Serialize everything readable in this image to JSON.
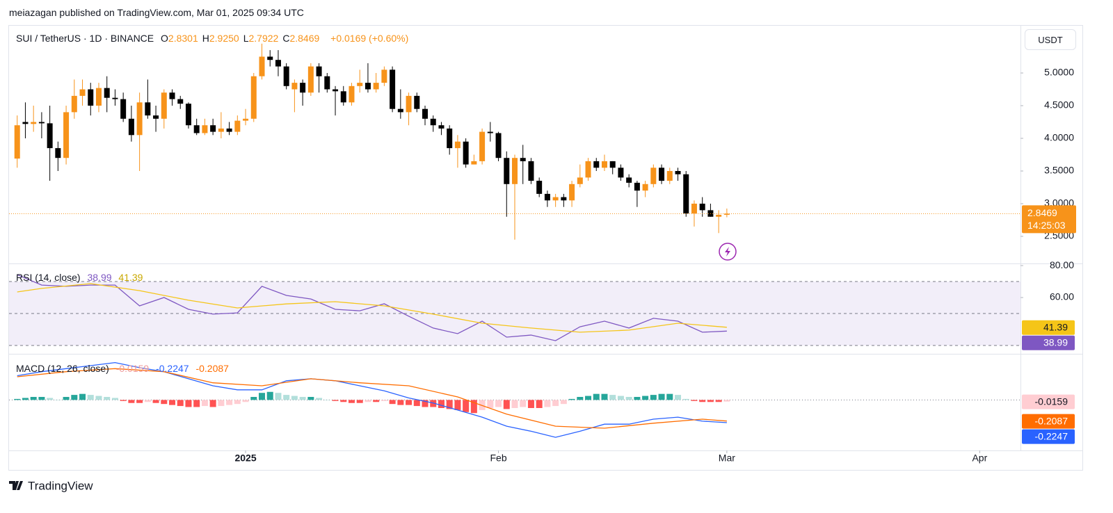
{
  "header": {
    "publisher": "meiazagan published on TradingView.com, Mar 01, 2025 09:34 UTC",
    "currency_button": "USDT"
  },
  "legend": {
    "symbol": "SUI / TetherUS · 1D · BINANCE",
    "ohlc": [
      {
        "key": "O",
        "value": "2.8301"
      },
      {
        "key": "H",
        "value": "2.9250"
      },
      {
        "key": "L",
        "value": "2.7922"
      },
      {
        "key": "C",
        "value": "2.8469"
      }
    ],
    "change": "+0.0169 (+0.60%)",
    "countdown": "14:25:03"
  },
  "footer": {
    "brand": "TradingView"
  },
  "chart_data": [
    {
      "type": "candlestick",
      "up_color": "#f7931a",
      "down_color": "#000000",
      "xlim": [
        -1,
        123
      ],
      "xticks": [
        {
          "value": 28,
          "label": "2025"
        },
        {
          "value": 59,
          "label": "Feb"
        },
        {
          "value": 87,
          "label": "Mar"
        },
        {
          "value": 118,
          "label": "Apr"
        }
      ],
      "ylim": [
        2.0957,
        5.7234
      ],
      "yticks": [
        {
          "value": 2.5,
          "label": "2.5000"
        },
        {
          "value": 3,
          "label": "3.0000"
        },
        {
          "value": 3.5,
          "label": "3.5000"
        },
        {
          "value": 4,
          "label": "4.0000"
        },
        {
          "value": 4.5,
          "label": "4.5000"
        },
        {
          "value": 5,
          "label": "5.0000"
        }
      ],
      "open": [
        3.69,
        4.25,
        4.22,
        4.25,
        4.23,
        3.85,
        3.7,
        4.4,
        4.65,
        4.75,
        4.5,
        4.77,
        4.62,
        4.6,
        4.3,
        4.05,
        4.55,
        4.35,
        4.3,
        4.7,
        4.6,
        4.53,
        4.2,
        4.08,
        4.2,
        4.1,
        4.15,
        4.1,
        4.27,
        4.3,
        4.95,
        5.25,
        5.2,
        5.1,
        4.75,
        4.85,
        4.7,
        5.1,
        4.95,
        4.75,
        4.72,
        4.55,
        4.8,
        4.85,
        4.75,
        4.85,
        5.05,
        4.45,
        4.4,
        4.65,
        4.45,
        4.3,
        4.2,
        4.15,
        3.85,
        3.95,
        3.6,
        3.65,
        4.1,
        4.08,
        3.7,
        3.3,
        3.7,
        3.65,
        3.35,
        3.15,
        3.05,
        3.1,
        3.05,
        3.3,
        3.4,
        3.65,
        3.55,
        3.65,
        3.55,
        3.4,
        3.32,
        3.2,
        3.3,
        3.55,
        3.35,
        3.5,
        3.45,
        2.85,
        3.0,
        2.9,
        2.8,
        2.8301
      ],
      "high": [
        4.35,
        4.55,
        4.5,
        4.4,
        4.5,
        3.95,
        4.5,
        4.9,
        4.9,
        4.85,
        4.85,
        4.95,
        4.75,
        4.7,
        4.5,
        4.7,
        4.9,
        4.5,
        4.75,
        4.75,
        4.65,
        4.55,
        4.3,
        4.3,
        4.3,
        4.4,
        4.25,
        4.35,
        4.45,
        5.0,
        5.45,
        5.35,
        5.35,
        5.15,
        4.9,
        4.9,
        5.15,
        5.15,
        5.0,
        4.8,
        4.8,
        4.85,
        5.05,
        5.15,
        5.0,
        5.1,
        5.1,
        4.75,
        4.7,
        4.7,
        4.5,
        4.35,
        4.25,
        4.2,
        4.05,
        4.0,
        3.75,
        4.15,
        4.25,
        4.1,
        3.8,
        3.75,
        3.9,
        3.7,
        3.4,
        3.2,
        3.15,
        3.15,
        3.35,
        3.6,
        3.7,
        3.7,
        3.75,
        3.65,
        3.6,
        3.45,
        3.35,
        3.35,
        3.6,
        3.6,
        3.55,
        3.55,
        3.5,
        3.05,
        3.1,
        3.0,
        2.9,
        2.925
      ],
      "low": [
        3.55,
        4.0,
        4.1,
        4.0,
        3.35,
        3.5,
        3.6,
        4.3,
        4.5,
        4.35,
        4.4,
        4.4,
        4.5,
        4.25,
        3.95,
        3.5,
        4.3,
        4.1,
        4.15,
        4.5,
        4.45,
        4.15,
        4.05,
        4.05,
        4.05,
        4.0,
        4.05,
        4.05,
        4.2,
        4.25,
        4.9,
        5.1,
        4.95,
        4.75,
        4.4,
        4.5,
        4.65,
        4.7,
        4.7,
        4.35,
        4.5,
        4.5,
        4.7,
        4.7,
        4.7,
        4.8,
        4.4,
        4.3,
        4.2,
        4.4,
        4.2,
        4.1,
        4.05,
        3.75,
        3.55,
        3.55,
        3.6,
        3.6,
        3.95,
        3.65,
        2.8,
        2.45,
        3.3,
        3.3,
        3.1,
        2.95,
        2.95,
        2.95,
        2.95,
        3.25,
        3.35,
        3.5,
        3.5,
        3.45,
        3.35,
        3.25,
        2.95,
        3.1,
        3.25,
        3.3,
        3.3,
        3.35,
        2.8,
        2.65,
        2.8,
        2.8,
        2.55,
        2.7922
      ],
      "close": [
        4.2,
        4.22,
        4.25,
        4.23,
        3.85,
        3.7,
        4.4,
        4.65,
        4.75,
        4.5,
        4.77,
        4.62,
        4.6,
        4.3,
        4.05,
        4.55,
        4.35,
        4.3,
        4.7,
        4.6,
        4.53,
        4.2,
        4.08,
        4.2,
        4.1,
        4.15,
        4.1,
        4.27,
        4.3,
        4.95,
        5.25,
        5.2,
        5.1,
        4.8,
        4.85,
        4.7,
        5.1,
        4.95,
        4.75,
        4.72,
        4.55,
        4.8,
        4.85,
        4.75,
        4.85,
        5.05,
        4.45,
        4.4,
        4.65,
        4.45,
        4.3,
        4.2,
        4.15,
        3.85,
        3.95,
        3.6,
        3.65,
        4.1,
        4.08,
        3.7,
        3.3,
        3.7,
        3.65,
        3.35,
        3.15,
        3.05,
        3.1,
        3.05,
        3.3,
        3.4,
        3.65,
        3.55,
        3.65,
        3.55,
        3.4,
        3.32,
        3.2,
        3.3,
        3.55,
        3.35,
        3.5,
        3.45,
        2.85,
        3.0,
        2.9,
        2.8,
        2.83,
        2.8469
      ]
    },
    {
      "type": "line",
      "title": "RSI (14, close)",
      "xlim": [
        -1,
        123
      ],
      "ylim": [
        25.2,
        80.9
      ],
      "yticks": [
        {
          "value": 80,
          "label": "80.00"
        },
        {
          "value": 60,
          "label": "60.00"
        }
      ],
      "bands": [
        70,
        50,
        30
      ],
      "band_color": "#7e57c2",
      "series": [
        {
          "color": "#7e57c2",
          "x": [
            0,
            3,
            6,
            9,
            12,
            15,
            18,
            21,
            24,
            27,
            30,
            33,
            36,
            39,
            42,
            45,
            48,
            51,
            54,
            57,
            60,
            63,
            66,
            69,
            72,
            75,
            78,
            81,
            84,
            87
          ],
          "values": [
            74.3,
            67.8,
            67,
            67.8,
            67.8,
            54.8,
            60,
            52.6,
            49.6,
            50.4,
            67,
            61.3,
            59.1,
            52.6,
            51.7,
            56.1,
            48.3,
            40.9,
            37.4,
            45.2,
            35.2,
            36.5,
            33,
            41.7,
            45.2,
            40.9,
            47,
            45.2,
            38.3,
            38.99
          ]
        },
        {
          "color": "#f5c518",
          "x": [
            0,
            3,
            9,
            15,
            21,
            27,
            33,
            39,
            45,
            51,
            57,
            63,
            69,
            75,
            81,
            87
          ],
          "values": [
            63.5,
            65.7,
            68.7,
            64.3,
            58.3,
            53.5,
            56,
            57.4,
            54.8,
            49.6,
            43.9,
            40.9,
            38.3,
            39.6,
            43.9,
            41.39
          ]
        }
      ]
    },
    {
      "type": "macd",
      "title": "MACD (12, 26, close)",
      "xlim": [
        -1,
        123
      ],
      "ylim": [
        -0.5,
        0.45
      ],
      "histogram": {
        "colors": [
          "#26a69a",
          "#b2dfdb",
          "#ff5252",
          "#ffcdd2"
        ],
        "values": [
          0.01,
          0.02,
          0.03,
          0.03,
          0.02,
          0.0,
          0.03,
          0.05,
          0.06,
          0.05,
          0.04,
          0.03,
          0.02,
          -0.01,
          -0.03,
          -0.03,
          -0.02,
          -0.03,
          -0.04,
          -0.05,
          -0.06,
          -0.07,
          -0.07,
          -0.06,
          -0.07,
          -0.06,
          -0.05,
          -0.04,
          -0.02,
          0.03,
          0.07,
          0.08,
          0.07,
          0.05,
          0.04,
          0.03,
          0.03,
          0.02,
          0.0,
          -0.01,
          -0.02,
          -0.03,
          -0.03,
          -0.02,
          -0.02,
          -0.01,
          -0.04,
          -0.05,
          -0.05,
          -0.06,
          -0.07,
          -0.07,
          -0.08,
          -0.09,
          -0.1,
          -0.12,
          -0.13,
          -0.1,
          -0.08,
          -0.07,
          -0.09,
          -0.08,
          -0.07,
          -0.08,
          -0.08,
          -0.07,
          -0.06,
          -0.04,
          0.01,
          0.03,
          0.04,
          0.06,
          0.06,
          0.05,
          0.04,
          0.03,
          0.03,
          0.04,
          0.05,
          0.06,
          0.06,
          0.05,
          0.01,
          -0.01,
          -0.02,
          -0.02,
          -0.02,
          -0.0159
        ]
      },
      "series": [
        {
          "color": "#2962ff",
          "x": [
            0,
            3,
            6,
            9,
            12,
            15,
            18,
            21,
            24,
            27,
            30,
            33,
            36,
            39,
            42,
            45,
            48,
            51,
            54,
            57,
            60,
            63,
            66,
            69,
            72,
            75,
            78,
            81,
            84,
            87
          ],
          "values": [
            0.24,
            0.28,
            0.31,
            0.34,
            0.37,
            0.32,
            0.28,
            0.21,
            0.14,
            0.1,
            0.1,
            0.19,
            0.21,
            0.19,
            0.14,
            0.09,
            0.02,
            -0.03,
            -0.1,
            -0.17,
            -0.26,
            -0.31,
            -0.37,
            -0.31,
            -0.24,
            -0.24,
            -0.19,
            -0.17,
            -0.21,
            -0.2247
          ]
        },
        {
          "color": "#ff6d00",
          "x": [
            0,
            6,
            12,
            18,
            24,
            30,
            36,
            42,
            48,
            54,
            60,
            66,
            72,
            78,
            84,
            87
          ],
          "values": [
            0.23,
            0.28,
            0.31,
            0.28,
            0.17,
            0.14,
            0.21,
            0.17,
            0.14,
            0.03,
            -0.14,
            -0.26,
            -0.28,
            -0.23,
            -0.19,
            -0.2087
          ]
        }
      ]
    }
  ]
}
